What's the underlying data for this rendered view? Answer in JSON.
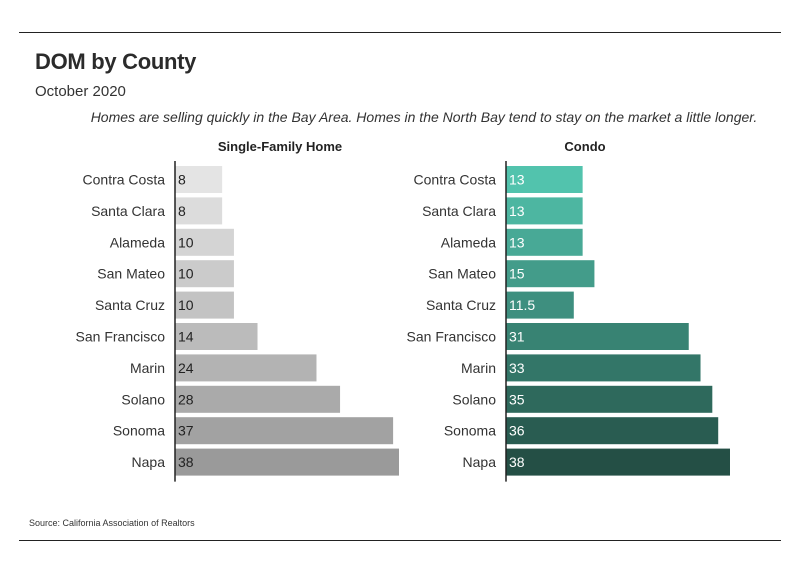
{
  "header": {
    "title": "DOM by County",
    "subtitle": "October 2020",
    "note": "Homes are selling quickly in the Bay Area. Homes in the North Bay tend to stay on the market a little longer."
  },
  "footer": {
    "source": "Source:  California Association of Realtors"
  },
  "chart_data": [
    {
      "type": "bar",
      "orientation": "horizontal",
      "title": "Single-Family Home",
      "categories": [
        "Contra Costa",
        "Santa Clara",
        "Alameda",
        "San Mateo",
        "Santa Cruz",
        "San Francisco",
        "Marin",
        "Solano",
        "Sonoma",
        "Napa"
      ],
      "values": [
        8,
        8,
        10,
        10,
        10,
        14,
        24,
        28,
        37,
        38
      ],
      "value_labels": [
        "8",
        "8",
        "10",
        "10",
        "10",
        "14",
        "24",
        "28",
        "37",
        "38"
      ],
      "xlim": [
        0,
        38
      ],
      "color_range": [
        "#e4e4e4",
        "#9a9a9a"
      ],
      "grid": false,
      "legend": "none"
    },
    {
      "type": "bar",
      "orientation": "horizontal",
      "title": "Condo",
      "categories": [
        "Contra Costa",
        "Santa Clara",
        "Alameda",
        "San Mateo",
        "Santa Cruz",
        "San Francisco",
        "Marin",
        "Solano",
        "Sonoma",
        "Napa"
      ],
      "values": [
        13,
        13,
        13,
        15,
        11.5,
        31,
        33,
        35,
        36,
        38
      ],
      "value_labels": [
        "13",
        "13",
        "13",
        "15",
        "11.5",
        "31",
        "33",
        "35",
        "36",
        "38"
      ],
      "xlim": [
        0,
        38
      ],
      "color_range": [
        "#52c3ad",
        "#244f45"
      ],
      "grid": false,
      "legend": "none"
    }
  ]
}
